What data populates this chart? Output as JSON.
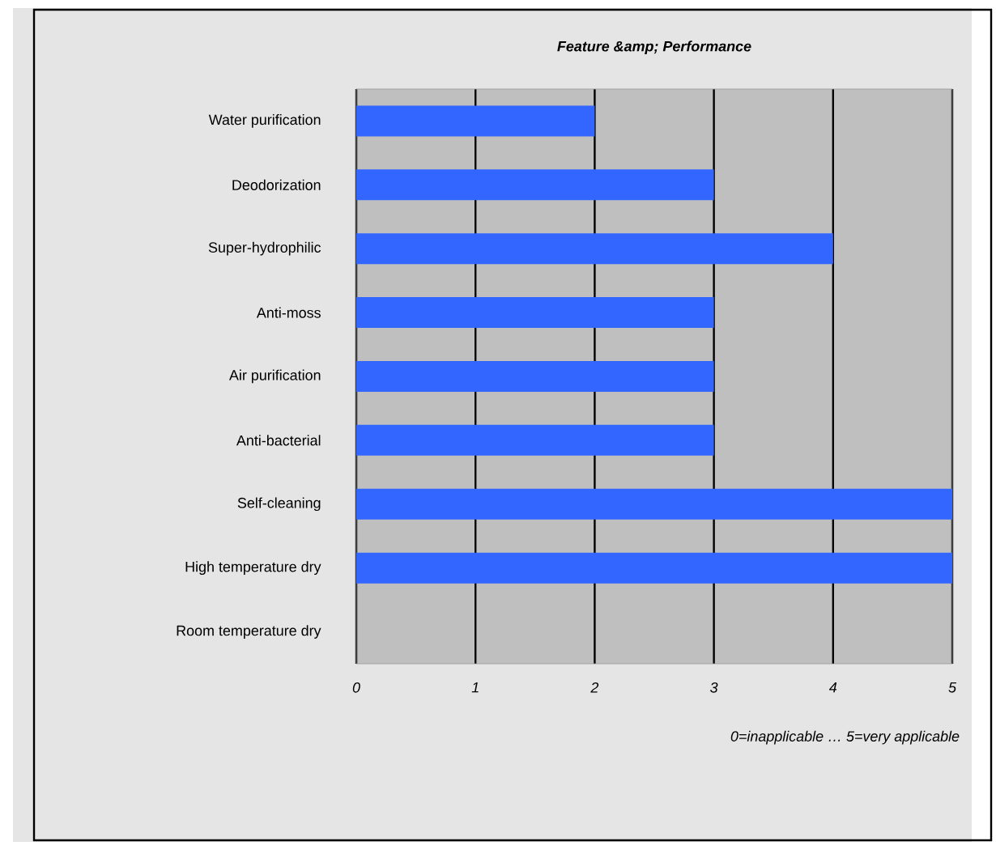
{
  "chart_data": {
    "type": "bar",
    "orientation": "horizontal",
    "title": "Feature &amp; Performance",
    "xlabel": "0=inapplicable … 5=very applicable",
    "categories": [
      "Water purification",
      "Deodorization",
      "Super-hydrophilic",
      "Anti-moss",
      "Air purification",
      "Anti-bacterial",
      "Self-cleaning",
      "High temperature dry",
      "Room temperature dry"
    ],
    "values": [
      2,
      3,
      4,
      3,
      3,
      3,
      5,
      5,
      0
    ],
    "color": "#3366ff",
    "xlim": [
      0,
      5
    ],
    "xticks": [
      0,
      1,
      2,
      3,
      4,
      5
    ],
    "grid": "x"
  }
}
